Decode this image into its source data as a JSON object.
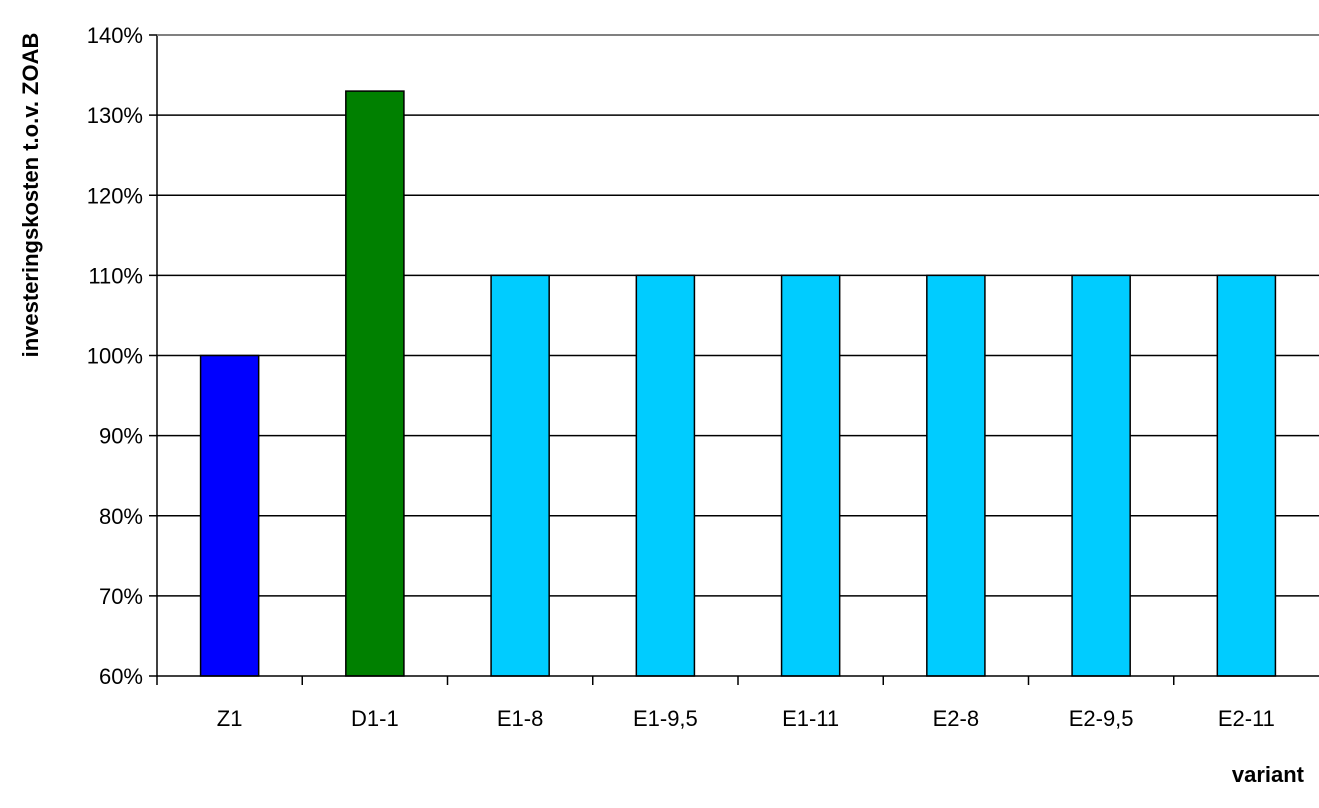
{
  "chart_data": {
    "type": "bar",
    "title": "",
    "xlabel": "variant",
    "ylabel": "investeringskosten t.o.v. ZOAB",
    "categories": [
      "Z1",
      "D1-1",
      "E1-8",
      "E1-9,5",
      "E1-11",
      "E2-8",
      "E2-9,5",
      "E2-11"
    ],
    "values": [
      100,
      133,
      110,
      110,
      110,
      110,
      110,
      110
    ],
    "bar_colors": [
      "#0000ff",
      "#008000",
      "#00ccff",
      "#00ccff",
      "#00ccff",
      "#00ccff",
      "#00ccff",
      "#00ccff"
    ],
    "ylim": [
      60,
      140
    ],
    "yticks": [
      60,
      70,
      80,
      90,
      100,
      110,
      120,
      130,
      140
    ],
    "ytick_labels": [
      "60%",
      "70%",
      "80%",
      "90%",
      "100%",
      "110%",
      "120%",
      "130%",
      "140%"
    ],
    "grid": true,
    "legend": "none"
  }
}
